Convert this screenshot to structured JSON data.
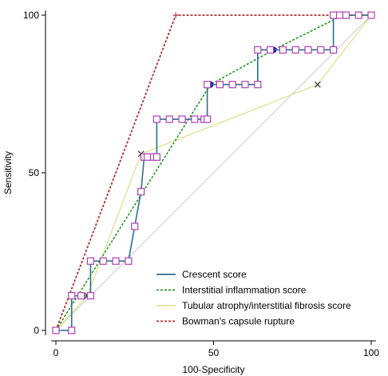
{
  "chart_data": {
    "type": "line",
    "title": "",
    "xlabel": "100-Specificity",
    "ylabel": "Sensitivity",
    "xlim": [
      0,
      100
    ],
    "ylim": [
      0,
      100
    ],
    "xticks": [
      0,
      50,
      100
    ],
    "yticks": [
      0,
      50,
      100
    ],
    "xtick_labels": [
      "0",
      "50",
      "100"
    ],
    "ytick_labels": [
      "0",
      "50",
      "100"
    ],
    "grid": false,
    "diagonal_reference": true,
    "legend_position": "bottom-right",
    "series": [
      {
        "name": "Crescent score",
        "color": "#2E6E8E",
        "style": "solid",
        "marker": "square",
        "marker_color": "#B040B0",
        "x": [
          0,
          0,
          5,
          5,
          8,
          8,
          11,
          11,
          15,
          19,
          23,
          23,
          25,
          27,
          28,
          29,
          31,
          32,
          32,
          36,
          40,
          44,
          47,
          48,
          48,
          52,
          56,
          60,
          64,
          64,
          68,
          72,
          76,
          80,
          84,
          88,
          88,
          90,
          92,
          96,
          100
        ],
        "y": [
          0,
          0,
          0,
          11,
          11,
          11,
          11,
          22,
          22,
          22,
          22,
          22,
          33,
          44,
          55,
          55,
          55,
          55,
          67,
          67,
          67,
          67,
          67,
          67,
          78,
          78,
          78,
          78,
          78,
          89,
          89,
          89,
          89,
          89,
          89,
          89,
          100,
          100,
          100,
          100,
          100
        ]
      },
      {
        "name": "Interstitial inflammation score",
        "color": "#229922",
        "style": "dashed",
        "marker": "circle",
        "marker_color": "#1010C0",
        "x": [
          0,
          49,
          69,
          91,
          100
        ],
        "y": [
          0,
          78,
          89,
          100,
          100
        ]
      },
      {
        "name": "Tubular atrophy/interstitial fibrosis score",
        "color": "#E2E29A",
        "style": "solid",
        "marker": "x",
        "marker_color": "#333333",
        "x": [
          0,
          10,
          27,
          83,
          100
        ],
        "y": [
          0,
          11,
          56,
          78,
          100
        ]
      },
      {
        "name": "Bowman's capsule rupture",
        "color": "#B03030",
        "style": "dashed",
        "marker": "plus",
        "marker_color": "#C03080",
        "x": [
          0,
          38,
          100
        ],
        "y": [
          0,
          100,
          100
        ]
      }
    ]
  }
}
